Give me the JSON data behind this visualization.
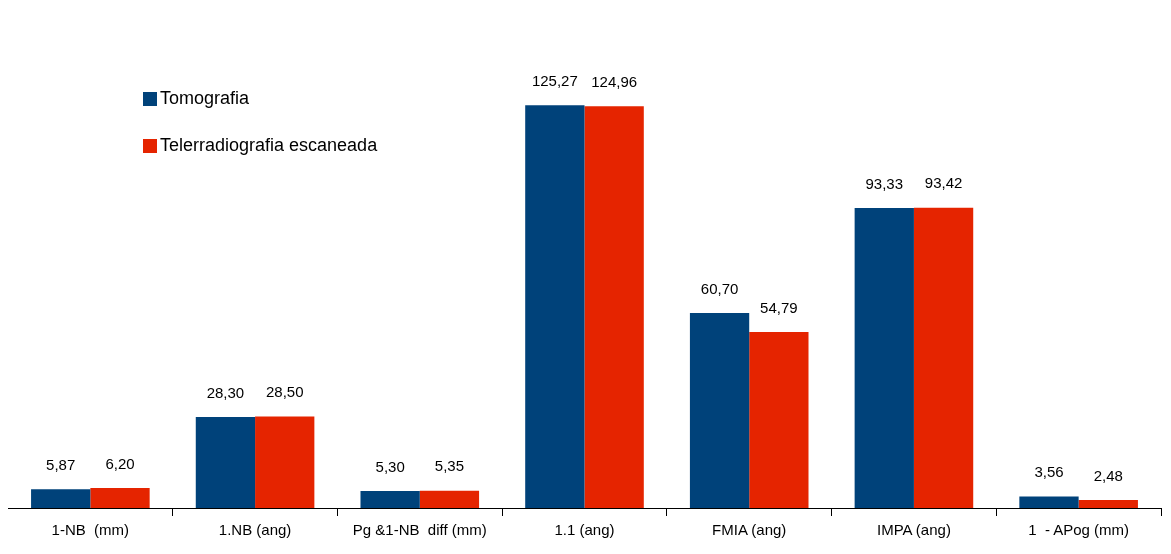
{
  "chart_data": {
    "type": "bar",
    "categories": [
      "1-NB  (mm)",
      "1.NB (ang)",
      "Pg &1-NB  diff (mm)",
      "1.1 (ang)",
      "FMIA (ang)",
      "IMPA (ang)",
      "1  - APog (mm)"
    ],
    "series": [
      {
        "name": "Tomografia",
        "color": "#00427a",
        "values": [
          5.87,
          28.3,
          5.3,
          125.27,
          60.7,
          93.33,
          3.56
        ],
        "value_labels": [
          "5,87",
          "28,30",
          "5,30",
          "125,27",
          "60,70",
          "93,33",
          "3,56"
        ]
      },
      {
        "name": "Telerradiografia escaneada",
        "color": "#e52400",
        "values": [
          6.2,
          28.5,
          5.35,
          124.96,
          54.79,
          93.42,
          2.48
        ],
        "value_labels": [
          "6,20",
          "28,50",
          "5,35",
          "124,96",
          "54,79",
          "93,42",
          "2,48"
        ]
      }
    ],
    "legend": "top left",
    "grid": false
  }
}
